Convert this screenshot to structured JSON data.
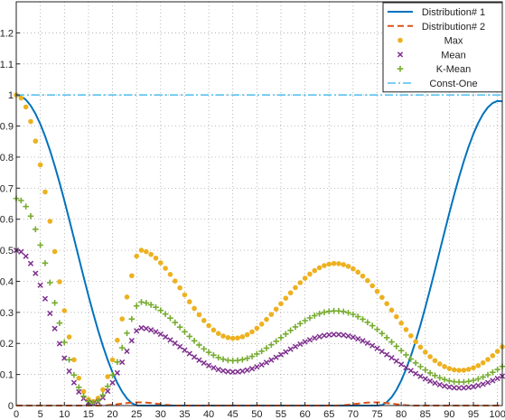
{
  "chart_data": {
    "type": "line",
    "title": "",
    "xlabel": "",
    "ylabel": "",
    "xlim": [
      0,
      101
    ],
    "ylim": [
      0,
      1.3
    ],
    "xticks": [
      0,
      5,
      10,
      15,
      20,
      25,
      30,
      35,
      40,
      45,
      50,
      55,
      60,
      65,
      70,
      75,
      80,
      85,
      90,
      95,
      100
    ],
    "yticks": [
      0,
      0.1,
      0.2,
      0.3,
      0.4,
      0.5,
      0.6,
      0.7,
      0.8,
      0.9,
      1,
      1.1,
      1.2
    ],
    "grid": true,
    "grid_style": "dotted",
    "legend_position": "top-right",
    "x": [
      0,
      1,
      2,
      3,
      4,
      5,
      6,
      7,
      8,
      9,
      10,
      11,
      12,
      13,
      14,
      15,
      16,
      17,
      18,
      19,
      20,
      21,
      22,
      23,
      24,
      25,
      26,
      27,
      28,
      29,
      30,
      31,
      32,
      33,
      34,
      35,
      36,
      37,
      38,
      39,
      40,
      41,
      42,
      43,
      44,
      45,
      46,
      47,
      48,
      49,
      50,
      51,
      52,
      53,
      54,
      55,
      56,
      57,
      58,
      59,
      60,
      61,
      62,
      63,
      64,
      65,
      66,
      67,
      68,
      69,
      70,
      71,
      72,
      73,
      74,
      75,
      76,
      77,
      78,
      79,
      80,
      81,
      82,
      83,
      84,
      85,
      86,
      87,
      88,
      89,
      90,
      91,
      92,
      93,
      94,
      95,
      96,
      97,
      98,
      99,
      100,
      101
    ],
    "series": [
      {
        "name": "Distribution# 1",
        "style": "solid-line",
        "color": "#0072BD",
        "values": [
          1,
          0.9961,
          0.9846,
          0.9655,
          0.9393,
          0.9063,
          0.8669,
          0.8219,
          0.7717,
          0.7174,
          0.6597,
          0.5995,
          0.5379,
          0.4758,
          0.4142,
          0.3542,
          0.2966,
          0.2423,
          0.1922,
          0.1468,
          0.1068,
          0.0726,
          0.0445,
          0.0227,
          0.0077,
          0.0003,
          0,
          0,
          0,
          0,
          0,
          0,
          0,
          0,
          0,
          0,
          0,
          0,
          0,
          0,
          0,
          0,
          0,
          0,
          0,
          0,
          0,
          0,
          0,
          0,
          0,
          0,
          0,
          0,
          0,
          0,
          0,
          0,
          0,
          0,
          0,
          0,
          0,
          0,
          0,
          0,
          0,
          0,
          0,
          0,
          0,
          0,
          0,
          0,
          0,
          0,
          0.0016,
          0.0106,
          0.0268,
          0.0502,
          0.0804,
          0.117,
          0.1595,
          0.2073,
          0.2597,
          0.3158,
          0.3747,
          0.4356,
          0.4975,
          0.5593,
          0.6201,
          0.6788,
          0.7346,
          0.7864,
          0.8334,
          0.8748,
          0.9101,
          0.9386,
          0.9601,
          0.9741,
          0.9806,
          0.9796
        ]
      },
      {
        "name": "Distribution# 2",
        "style": "dashed-line",
        "color": "#D95319",
        "values": [
          0,
          0,
          0,
          0,
          0,
          0,
          0,
          0,
          0,
          0,
          0,
          0,
          0,
          0,
          0,
          0,
          0,
          0,
          0.0003,
          0.0012,
          0.0026,
          0.0044,
          0.0063,
          0.0081,
          0.0095,
          0.0103,
          0.0103,
          0.0095,
          0.0081,
          0.0063,
          0.0044,
          0.0026,
          0.0012,
          0.0003,
          0,
          0,
          0,
          0,
          0,
          0,
          0,
          0,
          0,
          0,
          0,
          0,
          0,
          0,
          0,
          0,
          0,
          0,
          0,
          0,
          0,
          0,
          0,
          0,
          0,
          0,
          0,
          0,
          0,
          0,
          0,
          0,
          0,
          0.0003,
          0.0012,
          0.0026,
          0.0044,
          0.0063,
          0.0081,
          0.0095,
          0.0103,
          0.0103,
          0.0095,
          0.0081,
          0.0063,
          0.0044,
          0.0026,
          0.0012,
          0.0003,
          0,
          0,
          0,
          0,
          0,
          0,
          0,
          0,
          0,
          0,
          0,
          0,
          0,
          0,
          0,
          0,
          0,
          0,
          0
        ]
      },
      {
        "name": "Max",
        "style": "dot-markers",
        "color": "#EDB120",
        "values": [
          1,
          0.9903,
          0.9614,
          0.9145,
          0.8515,
          0.7749,
          0.6877,
          0.5934,
          0.4957,
          0.3985,
          0.3056,
          0.2209,
          0.1475,
          0.0882,
          0.0452,
          0.02,
          0.0129,
          0.0236,
          0.051,
          0.093,
          0.1471,
          0.2103,
          0.2789,
          0.3495,
          0.4181,
          0.4811,
          0.5,
          0.4955,
          0.4868,
          0.4747,
          0.4596,
          0.4419,
          0.4222,
          0.401,
          0.3789,
          0.3565,
          0.3342,
          0.3127,
          0.2924,
          0.2738,
          0.2573,
          0.2433,
          0.2321,
          0.2239,
          0.2187,
          0.2166,
          0.2176,
          0.2215,
          0.2282,
          0.2374,
          0.2489,
          0.2623,
          0.2773,
          0.2934,
          0.3104,
          0.3279,
          0.3455,
          0.3629,
          0.3797,
          0.3955,
          0.4101,
          0.4232,
          0.4345,
          0.4437,
          0.4507,
          0.4553,
          0.4574,
          0.4569,
          0.4538,
          0.4482,
          0.4401,
          0.4296,
          0.4169,
          0.4022,
          0.3857,
          0.3676,
          0.3483,
          0.3281,
          0.3073,
          0.2862,
          0.2652,
          0.2446,
          0.2247,
          0.2058,
          0.1881,
          0.1719,
          0.1574,
          0.1447,
          0.1341,
          0.1255,
          0.1192,
          0.1151,
          0.1134,
          0.1139,
          0.1167,
          0.1217,
          0.1287,
          0.1376,
          0.1483,
          0.1606,
          0.1743,
          0.1892
        ]
      },
      {
        "name": "Mean",
        "style": "x-markers",
        "color": "#7E2F8E",
        "values": [
          0.5,
          0.4952,
          0.4807,
          0.4573,
          0.4258,
          0.3875,
          0.3439,
          0.2967,
          0.2479,
          0.1993,
          0.1528,
          0.1105,
          0.0738,
          0.0441,
          0.0226,
          0.01,
          0.0065,
          0.0118,
          0.0255,
          0.0465,
          0.0736,
          0.1052,
          0.1395,
          0.1748,
          0.2091,
          0.2406,
          0.25,
          0.2478,
          0.2434,
          0.2374,
          0.2298,
          0.221,
          0.2111,
          0.2005,
          0.1895,
          0.1783,
          0.1671,
          0.1564,
          0.1462,
          0.1369,
          0.1287,
          0.1217,
          0.1161,
          0.112,
          0.1094,
          0.1083,
          0.1088,
          0.1108,
          0.1141,
          0.1187,
          0.1245,
          0.1312,
          0.1387,
          0.1467,
          0.1552,
          0.164,
          0.1728,
          0.1815,
          0.1899,
          0.1978,
          0.2051,
          0.2116,
          0.2173,
          0.2219,
          0.2254,
          0.2277,
          0.2287,
          0.2285,
          0.2269,
          0.2241,
          0.2201,
          0.2148,
          0.2085,
          0.2011,
          0.1929,
          0.1838,
          0.1742,
          0.1641,
          0.1537,
          0.1431,
          0.1326,
          0.1223,
          0.1124,
          0.1029,
          0.0941,
          0.086,
          0.0787,
          0.0724,
          0.0671,
          0.0628,
          0.0596,
          0.0576,
          0.0567,
          0.057,
          0.0584,
          0.0609,
          0.0644,
          0.0688,
          0.0742,
          0.0803,
          0.0872,
          0.0946
        ]
      },
      {
        "name": "K-Mean",
        "style": "plus-markers",
        "color": "#77AC30",
        "values": [
          0.6667,
          0.6602,
          0.6409,
          0.6097,
          0.5677,
          0.5166,
          0.4585,
          0.3956,
          0.3305,
          0.2657,
          0.2037,
          0.1473,
          0.0983,
          0.0588,
          0.0301,
          0.0133,
          0.0086,
          0.0157,
          0.034,
          0.062,
          0.0981,
          0.1402,
          0.1859,
          0.233,
          0.2787,
          0.3207,
          0.3333,
          0.3303,
          0.3245,
          0.3165,
          0.3064,
          0.2946,
          0.2815,
          0.2673,
          0.2526,
          0.2377,
          0.2228,
          0.2085,
          0.1949,
          0.1825,
          0.1715,
          0.1622,
          0.1547,
          0.1493,
          0.1458,
          0.1444,
          0.1451,
          0.1477,
          0.1521,
          0.1583,
          0.1659,
          0.1749,
          0.1849,
          0.1956,
          0.2069,
          0.2186,
          0.2303,
          0.2419,
          0.2531,
          0.2637,
          0.2734,
          0.2821,
          0.2897,
          0.2958,
          0.3005,
          0.3035,
          0.3049,
          0.3046,
          0.3025,
          0.2988,
          0.2934,
          0.2864,
          0.2779,
          0.2681,
          0.2571,
          0.2451,
          0.2322,
          0.2187,
          0.2049,
          0.1908,
          0.1768,
          0.1631,
          0.1498,
          0.1372,
          0.1254,
          0.1146,
          0.1049,
          0.0965,
          0.0894,
          0.0837,
          0.0795,
          0.0767,
          0.0756,
          0.0759,
          0.0778,
          0.0811,
          0.0858,
          0.0917,
          0.0989,
          0.1071,
          0.1162,
          0.1261
        ]
      },
      {
        "name": "Const-One",
        "style": "dash-dot-line",
        "color": "#4DBEEE",
        "values": [
          1,
          1,
          1,
          1,
          1,
          1,
          1,
          1,
          1,
          1,
          1,
          1,
          1,
          1,
          1,
          1,
          1,
          1,
          1,
          1,
          1,
          1,
          1,
          1,
          1,
          1,
          1,
          1,
          1,
          1,
          1,
          1,
          1,
          1,
          1,
          1,
          1,
          1,
          1,
          1,
          1,
          1,
          1,
          1,
          1,
          1,
          1,
          1,
          1,
          1,
          1,
          1,
          1,
          1,
          1,
          1,
          1,
          1,
          1,
          1,
          1,
          1,
          1,
          1,
          1,
          1,
          1,
          1,
          1,
          1,
          1,
          1,
          1,
          1,
          1,
          1,
          1,
          1,
          1,
          1,
          1,
          1,
          1,
          1,
          1,
          1,
          1,
          1,
          1,
          1,
          1,
          1,
          1,
          1,
          1,
          1,
          1,
          1,
          1,
          1,
          1,
          1
        ]
      }
    ]
  }
}
